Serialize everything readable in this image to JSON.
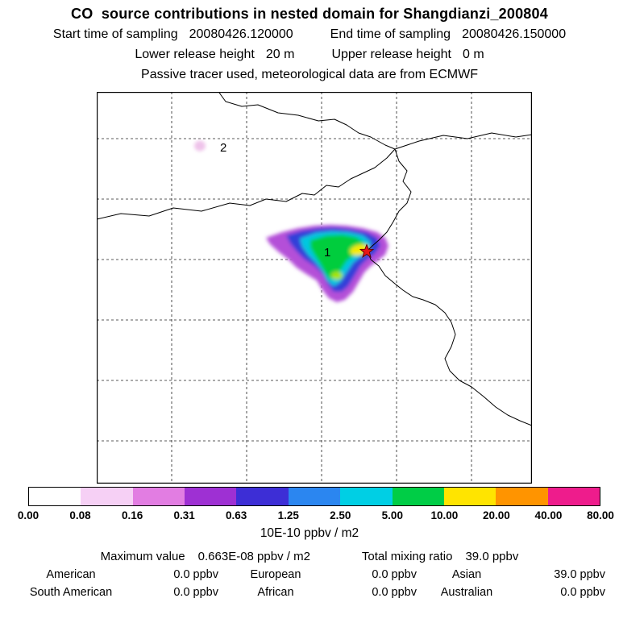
{
  "header": {
    "title": "CO  source contributions in nested domain for Shangdianzi_200804",
    "line2": {
      "start_label": "Start time of sampling",
      "start_value": "20080426.120000",
      "end_label": "End time of sampling",
      "end_value": "20080426.150000"
    },
    "line3": {
      "lower_label": "Lower release height",
      "lower_value": "20 m",
      "upper_label": "Upper release height",
      "upper_value": "0 m"
    },
    "line4": "Passive tracer used, meteorological data are from ECMWF"
  },
  "map": {
    "region1_label": "1",
    "region2_label": "2",
    "marker": "red-star-receptor"
  },
  "colorbar": {
    "ticks": [
      "0.00",
      "0.08",
      "0.16",
      "0.31",
      "0.63",
      "1.25",
      "2.50",
      "5.00",
      "10.00",
      "20.00",
      "40.00",
      "80.00"
    ],
    "colors": [
      "#ffffff",
      "#f6d0f5",
      "#e27de2",
      "#9e30d3",
      "#3d2ed6",
      "#2b86f0",
      "#00cfe4",
      "#00cd46",
      "#ffe400",
      "#ff9400",
      "#ee1c8c"
    ],
    "units": "10E-10 ppbv / m2"
  },
  "stats": {
    "max_label": "Maximum value",
    "max_value": "0.663E-08 ppbv / m2",
    "total_label": "Total mixing ratio",
    "total_value": "39.0 ppbv",
    "continents": [
      {
        "name": "American",
        "value": "0.0 ppbv"
      },
      {
        "name": "European",
        "value": "0.0 ppbv"
      },
      {
        "name": "Asian",
        "value": "39.0 ppbv"
      },
      {
        "name": "South American",
        "value": "0.0 ppbv"
      },
      {
        "name": "African",
        "value": "0.0 ppbv"
      },
      {
        "name": "Australian",
        "value": "0.0 ppbv"
      }
    ]
  },
  "chart_data": {
    "type": "heatmap",
    "subtype": "geographic source-contribution map with colorbar",
    "title": "CO source contributions in nested domain for Shangdianzi_200804",
    "station": "Shangdianzi_200804",
    "sampling_start": "20080426.120000",
    "sampling_end": "20080426.150000",
    "lower_release_height_m": 20,
    "upper_release_height_m": 0,
    "tracer_note": "Passive tracer used, meteorological data are from ECMWF",
    "colorbar_levels": [
      0.0,
      0.08,
      0.16,
      0.31,
      0.63,
      1.25,
      2.5,
      5.0,
      10.0,
      20.0,
      40.0,
      80.0
    ],
    "colorbar_units": "10E-10 ppbv / m2",
    "maximum_value": "0.663E-08 ppbv / m2",
    "total_mixing_ratio_ppbv": 39.0,
    "contributions_ppbv": {
      "American": 0.0,
      "European": 0.0,
      "Asian": 39.0,
      "South American": 0.0,
      "African": 0.0,
      "Australian": 0.0
    },
    "features": [
      {
        "label": "1",
        "description": "main plume center-right of map: magenta/purple rim, blue and cyan bands, green interior, yellow core adjacent to red star marker"
      },
      {
        "label": "2",
        "description": "small faint pink patch in upper-left quadrant of map"
      }
    ],
    "marker": {
      "type": "red star",
      "meaning": "receptor / sampling location on coastline"
    },
    "layout": {
      "grid": "dashed graticule",
      "legend_position": "horizontal colorbar below map"
    }
  }
}
